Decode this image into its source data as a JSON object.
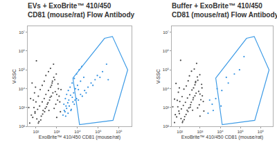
{
  "chart_data": [
    {
      "type": "scatter",
      "title": [
        "EVs + ExoBrite™ 410/450",
        "CD81 (mouse/rat) Flow Antibody"
      ],
      "xlabel": "ExoBrite™ 410/450 CD81 (mouse/rat)",
      "ylabel": "V-SSC",
      "log": true,
      "grid": false,
      "xlim": [
        40,
        4000000
      ],
      "ylim": [
        100,
        20000000
      ],
      "xticks": [
        {
          "value": 100,
          "label": "10²"
        },
        {
          "value": 1000,
          "label": "10³"
        },
        {
          "value": 10000,
          "label": "10⁴"
        },
        {
          "value": 100000,
          "label": "10⁵"
        },
        {
          "value": 1000000,
          "label": "10⁶"
        }
      ],
      "yticks": [
        {
          "value": 100,
          "label": "10²"
        },
        {
          "value": 1000,
          "label": "10³"
        },
        {
          "value": 10000,
          "label": "10⁴"
        },
        {
          "value": 100000,
          "label": "10⁵"
        },
        {
          "value": 1000000,
          "label": "10⁶"
        },
        {
          "value": 10000000,
          "label": "10⁷"
        }
      ],
      "series": [
        {
          "color": "#4a4a4a",
          "marker": "dot",
          "x": [
            50,
            70,
            90,
            120,
            150,
            200,
            250,
            300,
            400,
            500,
            600,
            800,
            1000,
            80,
            100,
            130,
            160,
            200,
            250,
            300,
            400,
            500,
            700,
            90,
            110,
            140,
            180,
            220,
            280,
            350,
            450,
            550,
            650,
            750,
            900,
            1100,
            1300,
            1200,
            950,
            60,
            75,
            85,
            95,
            105,
            130,
            170,
            210,
            260,
            320,
            380,
            420,
            480,
            560,
            620,
            720,
            850,
            1000,
            1150,
            1400,
            1500,
            1600,
            45,
            55,
            65
          ],
          "y": [
            150,
            300,
            500,
            800,
            1200,
            2000,
            3000,
            5000,
            8000,
            12000,
            20000,
            30000,
            300,
            1000,
            2000,
            4000,
            9000,
            15000,
            25000,
            50000,
            80000,
            120000,
            200000,
            600,
            250,
            180,
            350,
            700,
            900,
            1500,
            2500,
            4000,
            6000,
            900,
            1500,
            2500,
            4000,
            10000,
            60000,
            400,
            2500,
            6000,
            12000,
            300000,
            150,
            220,
            450,
            600,
            1100,
            1800,
            700,
            3500,
            15000,
            25000,
            40000,
            7000,
            5000,
            18000,
            2000,
            600,
            9000,
            1000,
            3000,
            20000
          ]
        },
        {
          "color": "#2f8fe0",
          "marker": "dot",
          "x": [
            2000,
            2500,
            3000,
            3500,
            4000,
            5000,
            6000,
            7000,
            9000,
            11000,
            14000,
            17000,
            22000,
            26000,
            32000,
            45000,
            55000,
            70000,
            90000,
            120000,
            160000,
            2200,
            2600,
            3000,
            3600,
            4400,
            5500,
            7000,
            9000,
            12000,
            16000,
            2800,
            3800,
            4600,
            6500,
            8000,
            10000,
            14000,
            20000,
            2300,
            2700,
            3400,
            4800,
            5600,
            7500,
            11000,
            250000,
            300000
          ],
          "y": [
            400,
            600,
            900,
            500,
            1200,
            800,
            2000,
            1500,
            3000,
            2500,
            5000,
            4000,
            8000,
            6000,
            12000,
            20000,
            15000,
            30000,
            50000,
            40000,
            80000,
            1500,
            3000,
            5000,
            8000,
            12000,
            20000,
            35000,
            60000,
            100000,
            150000,
            1200,
            2500,
            4500,
            6000,
            10000,
            15000,
            25000,
            40000,
            700,
            350,
            1800,
            700,
            3500,
            2500,
            9000,
            200000,
            30000
          ]
        }
      ],
      "gate": {
        "color": "#3d9be6",
        "x": [
          6000,
          200000,
          480000,
          2600000,
          510000,
          12500,
          6000
        ],
        "y": [
          37000,
          4700000,
          5900000,
          100000,
          210,
          125,
          37000
        ]
      }
    },
    {
      "type": "scatter",
      "title": [
        "Buffer + ExoBrite™ 410/450",
        "CD81 (mouse/rat) Flow Antibody"
      ],
      "xlabel": "ExoBrite™ 410/450 CD81 (mouse/rat)",
      "ylabel": "V-SSC",
      "log": true,
      "grid": false,
      "xlim": [
        40,
        4000000
      ],
      "ylim": [
        100,
        20000000
      ],
      "xticks": [
        {
          "value": 100,
          "label": "10²"
        },
        {
          "value": 1000,
          "label": "10³"
        },
        {
          "value": 10000,
          "label": "10⁴"
        },
        {
          "value": 100000,
          "label": "10⁵"
        },
        {
          "value": 1000000,
          "label": "10⁶"
        }
      ],
      "yticks": [
        {
          "value": 100,
          "label": "10²"
        },
        {
          "value": 1000,
          "label": "10³"
        },
        {
          "value": 10000,
          "label": "10⁴"
        },
        {
          "value": 100000,
          "label": "10⁵"
        },
        {
          "value": 1000000,
          "label": "10⁶"
        },
        {
          "value": 10000000,
          "label": "10⁷"
        }
      ],
      "series": [
        {
          "color": "#4a4a4a",
          "marker": "dot",
          "x": [
            55,
            70,
            95,
            120,
            150,
            190,
            240,
            310,
            400,
            480,
            600,
            780,
            1000,
            80,
            100,
            130,
            160,
            210,
            260,
            300,
            380,
            520,
            680,
            90,
            115,
            140,
            175,
            230,
            280,
            340,
            450,
            560,
            640,
            760,
            920,
            1100,
            1300,
            1250,
            980,
            60,
            75,
            85,
            95,
            110,
            135,
            165,
            205,
            255,
            330,
            370,
            430,
            470,
            560,
            610,
            740,
            860,
            1000,
            1200,
            1450,
            1550,
            45,
            55,
            65
          ],
          "y": [
            160,
            320,
            480,
            850,
            1300,
            1900,
            3200,
            4800,
            8500,
            11000,
            21000,
            28000,
            350,
            1100,
            2100,
            3800,
            9500,
            14000,
            26000,
            48000,
            85000,
            110000,
            220000,
            650,
            260,
            190,
            330,
            720,
            950,
            1400,
            2600,
            4200,
            5800,
            950,
            1400,
            2600,
            4200,
            11000,
            55000,
            420,
            2400,
            6500,
            11000,
            320000,
            160,
            230,
            430,
            620,
            1050,
            1900,
            720,
            3300,
            16000,
            24000,
            42000,
            7200,
            5200,
            17000,
            2100,
            650,
            1100,
            2800,
            19000
          ]
        },
        {
          "color": "#2f8fe0",
          "marker": "dot",
          "x": [
            2500,
            4000,
            6000,
            12000,
            25000,
            50000,
            3000,
            7000,
            11000,
            20000,
            90000,
            4500,
            150000
          ],
          "y": [
            500,
            1500,
            3000,
            8000,
            20000,
            60000,
            2500,
            10000,
            1200,
            40000,
            100000,
            700,
            500000
          ]
        }
      ],
      "gate": {
        "color": "#3d9be6",
        "x": [
          6000,
          200000,
          480000,
          2600000,
          510000,
          12500,
          6000
        ],
        "y": [
          37000,
          4700000,
          5900000,
          100000,
          210,
          125,
          37000
        ]
      }
    }
  ]
}
